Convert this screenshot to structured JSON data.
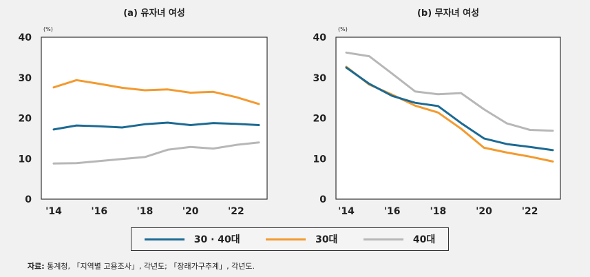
{
  "chart_data": [
    {
      "type": "line",
      "title": "(a) 유자녀 여성",
      "unit": "(%)",
      "x": [
        2014,
        2015,
        2016,
        2017,
        2018,
        2019,
        2020,
        2021,
        2022,
        2023
      ],
      "xticks": [
        "'14",
        "'16",
        "'18",
        "'20",
        "'22"
      ],
      "yticks": [
        "0",
        "10",
        "20",
        "30",
        "40"
      ],
      "ylim": [
        0,
        40
      ],
      "series": [
        {
          "name": "30 · 40대",
          "values": [
            17.2,
            18.2,
            18.0,
            17.7,
            18.5,
            18.9,
            18.3,
            18.8,
            18.6,
            18.3
          ]
        },
        {
          "name": "30대",
          "values": [
            27.6,
            29.4,
            28.5,
            27.5,
            26.9,
            27.1,
            26.3,
            26.5,
            25.2,
            23.5
          ]
        },
        {
          "name": "40대",
          "values": [
            8.8,
            8.9,
            9.4,
            9.9,
            10.4,
            12.2,
            12.9,
            12.5,
            13.4,
            14.0
          ]
        }
      ]
    },
    {
      "type": "line",
      "title": "(b) 무자녀 여성",
      "unit": "(%)",
      "x": [
        2014,
        2015,
        2016,
        2017,
        2018,
        2019,
        2020,
        2021,
        2022,
        2023
      ],
      "xticks": [
        "'14",
        "'16",
        "'18",
        "'20",
        "'22"
      ],
      "yticks": [
        "0",
        "10",
        "20",
        "30",
        "40"
      ],
      "ylim": [
        0,
        40
      ],
      "series": [
        {
          "name": "30 · 40대",
          "values": [
            32.5,
            28.5,
            25.5,
            23.8,
            23.0,
            18.8,
            15.0,
            13.6,
            12.9,
            12.1
          ]
        },
        {
          "name": "30대",
          "values": [
            32.7,
            28.3,
            25.8,
            23.1,
            21.4,
            17.4,
            12.7,
            11.5,
            10.5,
            9.3
          ]
        },
        {
          "name": "40대",
          "values": [
            36.2,
            35.3,
            31.0,
            26.6,
            25.9,
            26.2,
            22.2,
            18.7,
            17.1,
            16.9
          ]
        }
      ]
    }
  ],
  "colors": {
    "30 · 40대": "#1c6a93",
    "30대": "#f39a2e",
    "40대": "#b7b7b7"
  },
  "legend": [
    {
      "label": "30 · 40대",
      "color": "#1c6a93"
    },
    {
      "label": "30대",
      "color": "#f39a2e"
    },
    {
      "label": "40대",
      "color": "#b7b7b7"
    }
  ],
  "source": {
    "label": "자료:",
    "text": "통계청, 「지역별 고용조사」, 각년도; 「장래가구추계」, 각년도."
  }
}
